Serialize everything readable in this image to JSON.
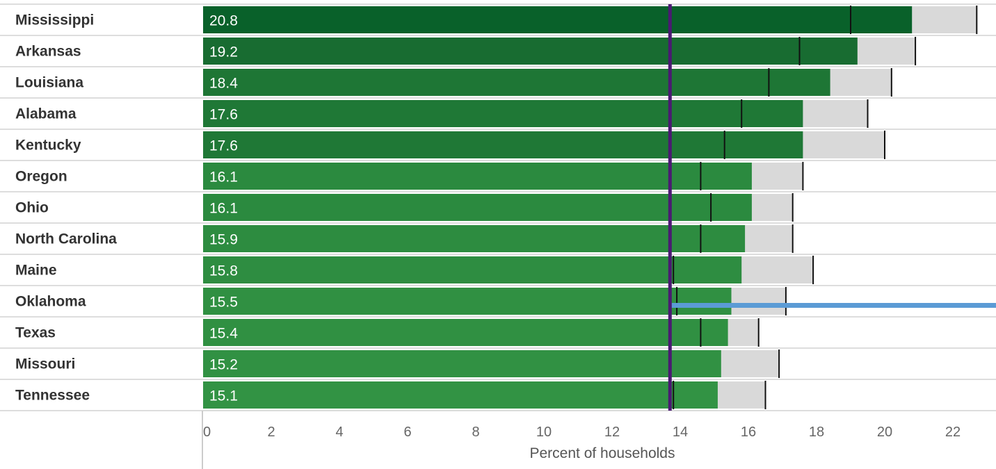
{
  "chart_data": {
    "type": "bar",
    "orientation": "horizontal",
    "xlabel": "Percent of households",
    "xlim": [
      0,
      23.3
    ],
    "xticks": [
      0,
      2,
      4,
      6,
      8,
      10,
      12,
      14,
      16,
      18,
      20,
      22
    ],
    "reference_line": 13.7,
    "categories": [
      "Mississippi",
      "Arkansas",
      "Louisiana",
      "Alabama",
      "Kentucky",
      "Oregon",
      "Ohio",
      "North Carolina",
      "Maine",
      "Oklahoma",
      "Texas",
      "Missouri",
      "Tennessee"
    ],
    "values": [
      20.8,
      19.2,
      18.4,
      17.6,
      17.6,
      16.1,
      16.1,
      15.9,
      15.8,
      15.5,
      15.4,
      15.2,
      15.1
    ],
    "value_labels": [
      "20.8",
      "19.2",
      "18.4",
      "17.6",
      "17.6",
      "16.1",
      "16.1",
      "15.9",
      "15.8",
      "15.5",
      "15.4",
      "15.2",
      "15.1"
    ],
    "interval_low": [
      19.0,
      17.5,
      16.6,
      15.8,
      15.3,
      14.6,
      14.9,
      14.6,
      13.8,
      13.9,
      14.6,
      13.7,
      13.8
    ],
    "interval_high": [
      22.7,
      20.9,
      20.2,
      19.5,
      20.0,
      17.6,
      17.3,
      17.3,
      17.9,
      17.1,
      16.3,
      16.9,
      16.5
    ],
    "highlight_row": "Oklahoma",
    "colors": {
      "bar_shades": [
        "#09612a",
        "#186c31",
        "#1e7635",
        "#1f7836",
        "#1f7836",
        "#2b8a3f",
        "#2b8a3f",
        "#2d8c40",
        "#2e8d41",
        "#309042",
        "#309042",
        "#319143",
        "#329344"
      ],
      "interval_band": "#d9d9d9",
      "reference_line": "#4b1a73",
      "highlight_line": "#5b9bd5",
      "row_divider": "#dddddd",
      "tick": "#111111"
    }
  }
}
